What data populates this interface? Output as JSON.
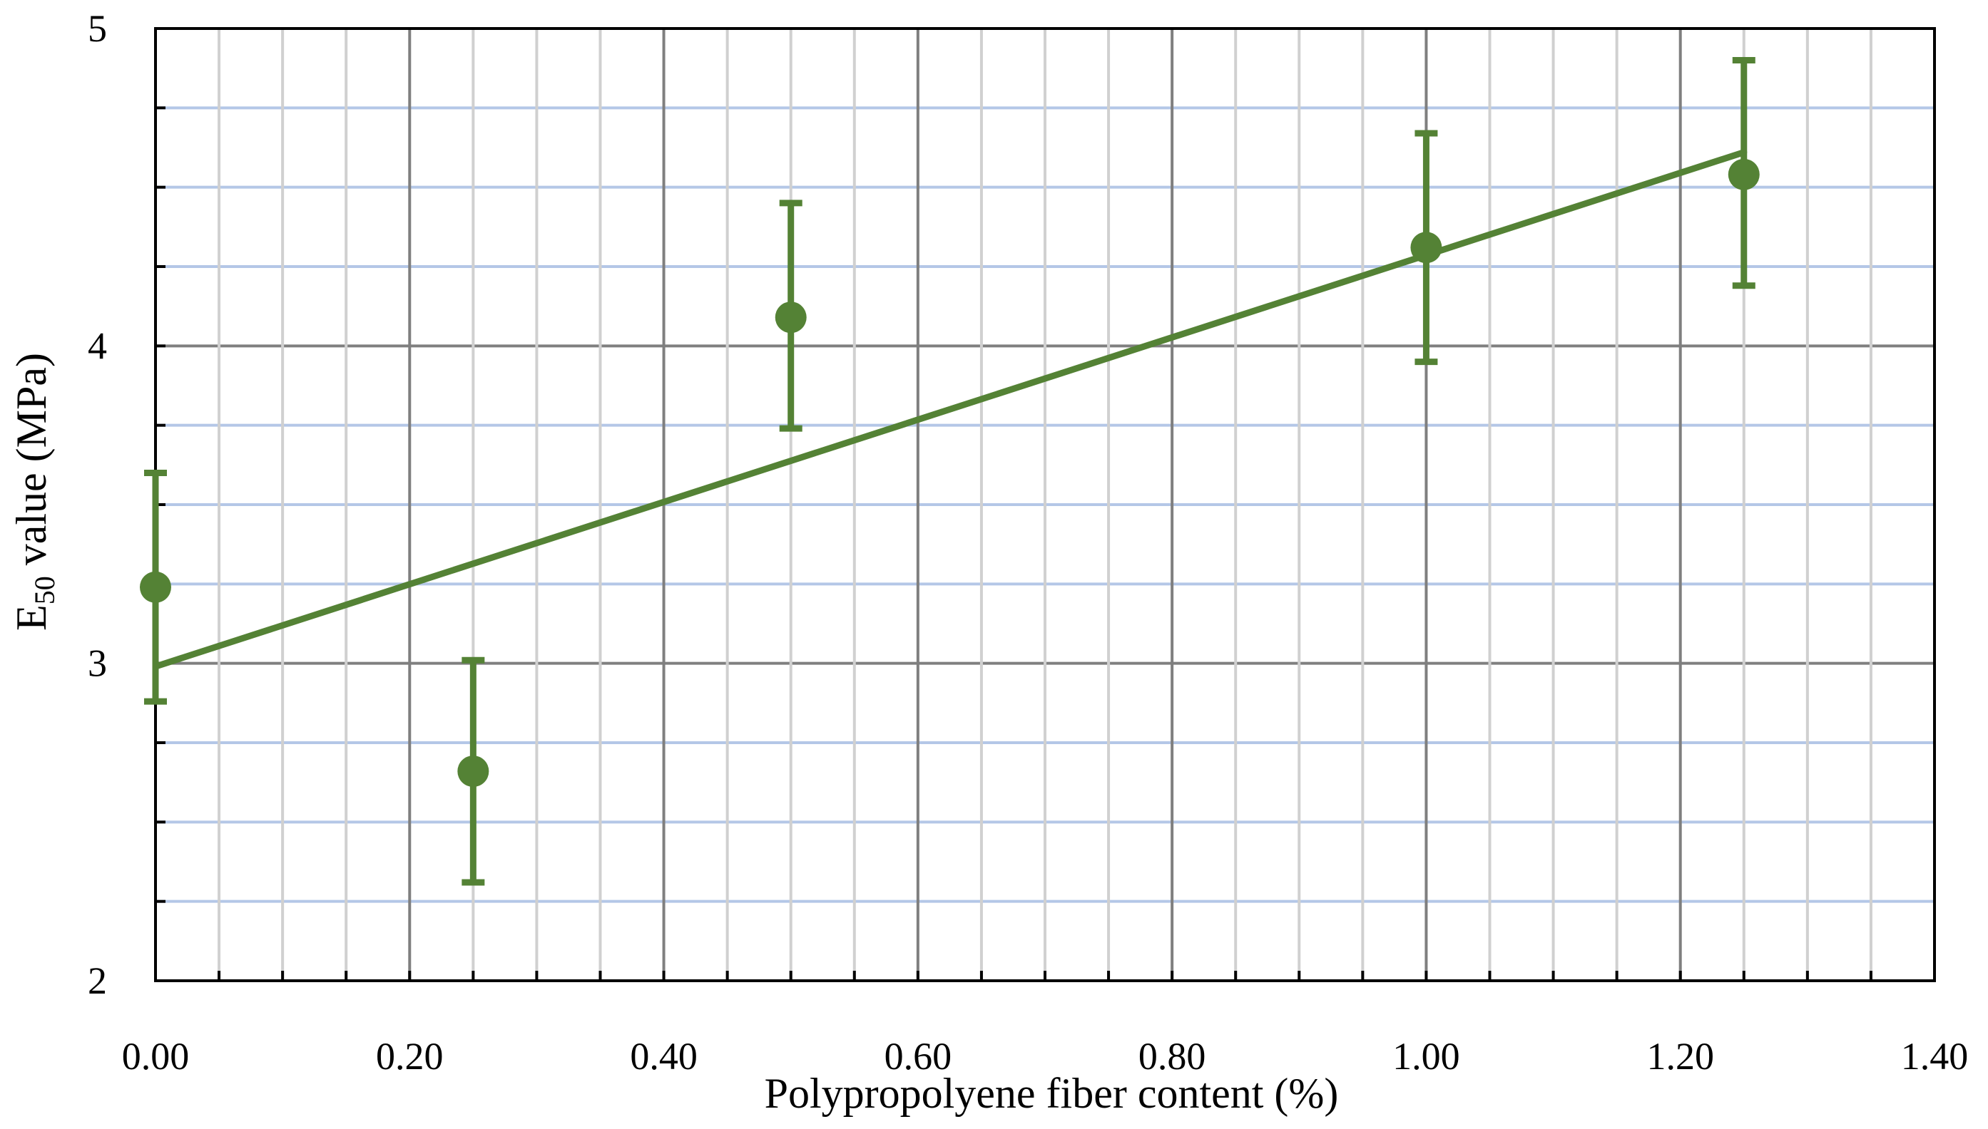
{
  "chart_data": {
    "type": "scatter",
    "xlabel": "Polypropolyene fiber content (%)",
    "ylabel": {
      "base": "E",
      "subscript": "50",
      "rest": " value (MPa)"
    },
    "xlim": [
      0,
      1.4
    ],
    "ylim": [
      2,
      5
    ],
    "x_ticks": [
      "0.00",
      "0.20",
      "0.40",
      "0.60",
      "0.80",
      "1.00",
      "1.20",
      "1.40"
    ],
    "y_ticks": [
      "2",
      "3",
      "4",
      "5"
    ],
    "x_major_step": 0.2,
    "x_minor_step": 0.05,
    "y_major_step": 1,
    "y_minor_step": 0.25,
    "grid": true,
    "series": [
      {
        "points": [
          {
            "x": 0.0,
            "y": 3.24,
            "err_low": 2.88,
            "err_high": 3.6
          },
          {
            "x": 0.25,
            "y": 2.66,
            "err_low": 2.31,
            "err_high": 3.01
          },
          {
            "x": 0.5,
            "y": 4.09,
            "err_low": 3.74,
            "err_high": 4.45
          },
          {
            "x": 1.0,
            "y": 4.31,
            "err_low": 3.95,
            "err_high": 4.67
          },
          {
            "x": 1.25,
            "y": 4.54,
            "err_low": 4.19,
            "err_high": 4.9
          }
        ]
      }
    ],
    "trendline": {
      "type": "linear",
      "x": [
        0.0,
        1.25
      ],
      "y": [
        2.99,
        4.61
      ]
    },
    "colors": {
      "series": "#548235",
      "major_grid_x": "#7f7f7f",
      "minor_grid_x": "#d0d0d0",
      "major_grid_y": "#7f7f7f",
      "minor_grid_y": "#b4c7e7",
      "axis": "#000000"
    }
  }
}
